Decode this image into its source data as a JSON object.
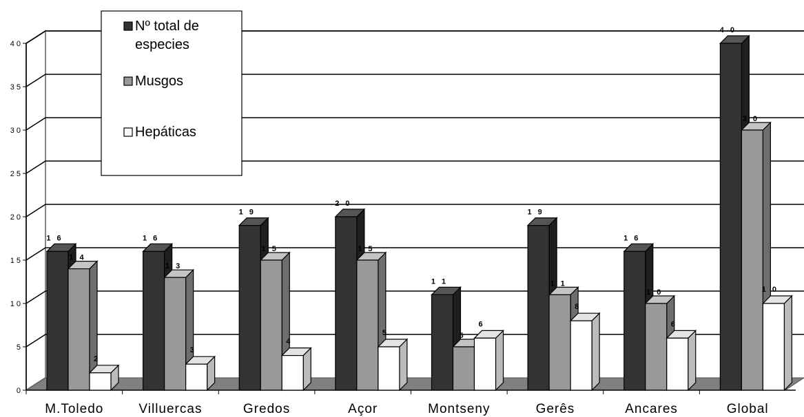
{
  "chart_data": {
    "type": "bar",
    "categories": [
      "M.Toledo",
      "Villuercas",
      "Gredos",
      "Açor",
      "Montseny",
      "Gerês",
      "Ancares",
      "Global"
    ],
    "series": [
      {
        "name": "Nº total de especies",
        "values": [
          16,
          16,
          19,
          20,
          11,
          19,
          16,
          40
        ],
        "color": "#333333"
      },
      {
        "name": "Musgos",
        "values": [
          14,
          13,
          15,
          15,
          5,
          11,
          10,
          30
        ],
        "color": "#999999"
      },
      {
        "name": "Hepáticas",
        "values": [
          2,
          3,
          4,
          5,
          6,
          8,
          6,
          10
        ],
        "color": "#ffffff"
      }
    ],
    "data_labels": [
      [
        "1 6",
        "1 6",
        "1 9",
        "2 0",
        "1 1",
        "1 9",
        "1 6",
        "4 0"
      ],
      [
        "1 4",
        "1 3",
        "1 5",
        "1 5",
        "5",
        "1 1",
        "1 0",
        "3 0"
      ],
      [
        "2",
        "3",
        "4",
        "5",
        "6",
        "8",
        "6",
        "1 0"
      ]
    ],
    "y_ticks": [
      "0",
      "5",
      "1 0",
      "1 5",
      "2 0",
      "2 5",
      "3 0",
      "3 5",
      "4 0"
    ],
    "ylim": [
      0,
      40
    ],
    "grid": true,
    "legend_position": "top-left",
    "title": "",
    "xlabel": "",
    "ylabel": ""
  }
}
